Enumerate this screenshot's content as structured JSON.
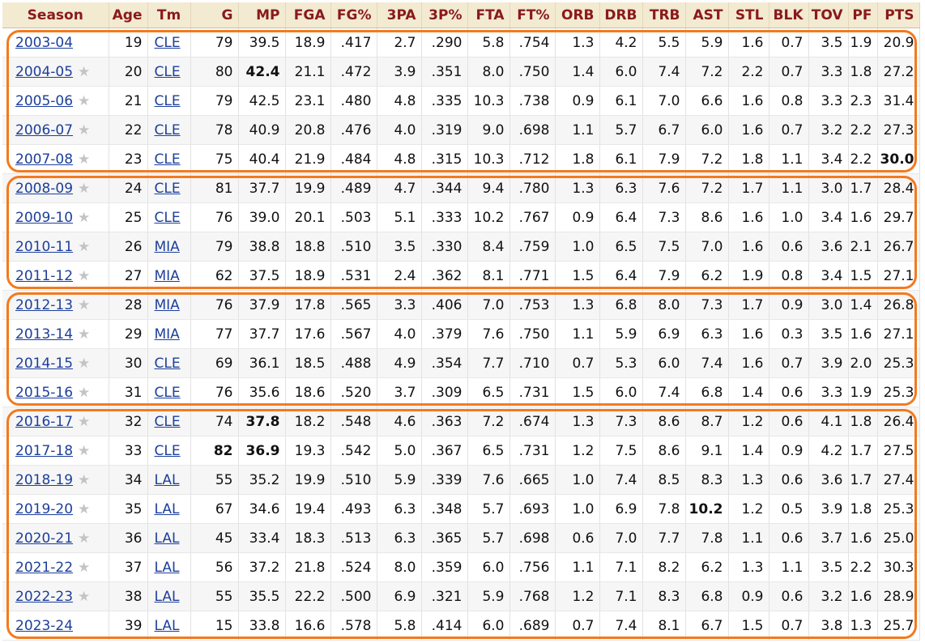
{
  "headers": [
    "Season",
    "Age",
    "Tm",
    "G",
    "MP",
    "FGA",
    "FG%",
    "3PA",
    "3P%",
    "FTA",
    "FT%",
    "ORB",
    "DRB",
    "TRB",
    "AST",
    "STL",
    "BLK",
    "TOV",
    "PF",
    "PTS"
  ],
  "star_glyph": "★",
  "colors": {
    "header_text": "#8a1a1a",
    "header_bg": "#f3ead2",
    "link": "#1c3f9b",
    "highlight_outline": "#f37a1e"
  },
  "rows": [
    {
      "season": "2003-04",
      "star": false,
      "age": "19",
      "tm": "CLE",
      "g": "79",
      "mp": "39.5",
      "fga": "18.9",
      "fgp": ".417",
      "tpa": "2.7",
      "tpp": ".290",
      "fta": "5.8",
      "ftp": ".754",
      "orb": "1.3",
      "drb": "4.2",
      "trb": "5.5",
      "ast": "5.9",
      "stl": "1.6",
      "blk": "0.7",
      "tov": "3.5",
      "pf": "1.9",
      "pts": "20.9",
      "bold": []
    },
    {
      "season": "2004-05",
      "star": true,
      "age": "20",
      "tm": "CLE",
      "g": "80",
      "mp": "42.4",
      "fga": "21.1",
      "fgp": ".472",
      "tpa": "3.9",
      "tpp": ".351",
      "fta": "8.0",
      "ftp": ".750",
      "orb": "1.4",
      "drb": "6.0",
      "trb": "7.4",
      "ast": "7.2",
      "stl": "2.2",
      "blk": "0.7",
      "tov": "3.3",
      "pf": "1.8",
      "pts": "27.2",
      "bold": [
        "mp"
      ]
    },
    {
      "season": "2005-06",
      "star": true,
      "age": "21",
      "tm": "CLE",
      "g": "79",
      "mp": "42.5",
      "fga": "23.1",
      "fgp": ".480",
      "tpa": "4.8",
      "tpp": ".335",
      "fta": "10.3",
      "ftp": ".738",
      "orb": "0.9",
      "drb": "6.1",
      "trb": "7.0",
      "ast": "6.6",
      "stl": "1.6",
      "blk": "0.8",
      "tov": "3.3",
      "pf": "2.3",
      "pts": "31.4",
      "bold": []
    },
    {
      "season": "2006-07",
      "star": true,
      "age": "22",
      "tm": "CLE",
      "g": "78",
      "mp": "40.9",
      "fga": "20.8",
      "fgp": ".476",
      "tpa": "4.0",
      "tpp": ".319",
      "fta": "9.0",
      "ftp": ".698",
      "orb": "1.1",
      "drb": "5.7",
      "trb": "6.7",
      "ast": "6.0",
      "stl": "1.6",
      "blk": "0.7",
      "tov": "3.2",
      "pf": "2.2",
      "pts": "27.3",
      "bold": []
    },
    {
      "season": "2007-08",
      "star": true,
      "age": "23",
      "tm": "CLE",
      "g": "75",
      "mp": "40.4",
      "fga": "21.9",
      "fgp": ".484",
      "tpa": "4.8",
      "tpp": ".315",
      "fta": "10.3",
      "ftp": ".712",
      "orb": "1.8",
      "drb": "6.1",
      "trb": "7.9",
      "ast": "7.2",
      "stl": "1.8",
      "blk": "1.1",
      "tov": "3.4",
      "pf": "2.2",
      "pts": "30.0",
      "bold": [
        "pts"
      ]
    },
    {
      "season": "2008-09",
      "star": true,
      "age": "24",
      "tm": "CLE",
      "g": "81",
      "mp": "37.7",
      "fga": "19.9",
      "fgp": ".489",
      "tpa": "4.7",
      "tpp": ".344",
      "fta": "9.4",
      "ftp": ".780",
      "orb": "1.3",
      "drb": "6.3",
      "trb": "7.6",
      "ast": "7.2",
      "stl": "1.7",
      "blk": "1.1",
      "tov": "3.0",
      "pf": "1.7",
      "pts": "28.4",
      "bold": []
    },
    {
      "season": "2009-10",
      "star": true,
      "age": "25",
      "tm": "CLE",
      "g": "76",
      "mp": "39.0",
      "fga": "20.1",
      "fgp": ".503",
      "tpa": "5.1",
      "tpp": ".333",
      "fta": "10.2",
      "ftp": ".767",
      "orb": "0.9",
      "drb": "6.4",
      "trb": "7.3",
      "ast": "8.6",
      "stl": "1.6",
      "blk": "1.0",
      "tov": "3.4",
      "pf": "1.6",
      "pts": "29.7",
      "bold": []
    },
    {
      "season": "2010-11",
      "star": true,
      "age": "26",
      "tm": "MIA",
      "g": "79",
      "mp": "38.8",
      "fga": "18.8",
      "fgp": ".510",
      "tpa": "3.5",
      "tpp": ".330",
      "fta": "8.4",
      "ftp": ".759",
      "orb": "1.0",
      "drb": "6.5",
      "trb": "7.5",
      "ast": "7.0",
      "stl": "1.6",
      "blk": "0.6",
      "tov": "3.6",
      "pf": "2.1",
      "pts": "26.7",
      "bold": []
    },
    {
      "season": "2011-12",
      "star": true,
      "age": "27",
      "tm": "MIA",
      "g": "62",
      "mp": "37.5",
      "fga": "18.9",
      "fgp": ".531",
      "tpa": "2.4",
      "tpp": ".362",
      "fta": "8.1",
      "ftp": ".771",
      "orb": "1.5",
      "drb": "6.4",
      "trb": "7.9",
      "ast": "6.2",
      "stl": "1.9",
      "blk": "0.8",
      "tov": "3.4",
      "pf": "1.5",
      "pts": "27.1",
      "bold": []
    },
    {
      "season": "2012-13",
      "star": true,
      "age": "28",
      "tm": "MIA",
      "g": "76",
      "mp": "37.9",
      "fga": "17.8",
      "fgp": ".565",
      "tpa": "3.3",
      "tpp": ".406",
      "fta": "7.0",
      "ftp": ".753",
      "orb": "1.3",
      "drb": "6.8",
      "trb": "8.0",
      "ast": "7.3",
      "stl": "1.7",
      "blk": "0.9",
      "tov": "3.0",
      "pf": "1.4",
      "pts": "26.8",
      "bold": []
    },
    {
      "season": "2013-14",
      "star": true,
      "age": "29",
      "tm": "MIA",
      "g": "77",
      "mp": "37.7",
      "fga": "17.6",
      "fgp": ".567",
      "tpa": "4.0",
      "tpp": ".379",
      "fta": "7.6",
      "ftp": ".750",
      "orb": "1.1",
      "drb": "5.9",
      "trb": "6.9",
      "ast": "6.3",
      "stl": "1.6",
      "blk": "0.3",
      "tov": "3.5",
      "pf": "1.6",
      "pts": "27.1",
      "bold": []
    },
    {
      "season": "2014-15",
      "star": true,
      "age": "30",
      "tm": "CLE",
      "g": "69",
      "mp": "36.1",
      "fga": "18.5",
      "fgp": ".488",
      "tpa": "4.9",
      "tpp": ".354",
      "fta": "7.7",
      "ftp": ".710",
      "orb": "0.7",
      "drb": "5.3",
      "trb": "6.0",
      "ast": "7.4",
      "stl": "1.6",
      "blk": "0.7",
      "tov": "3.9",
      "pf": "2.0",
      "pts": "25.3",
      "bold": []
    },
    {
      "season": "2015-16",
      "star": true,
      "age": "31",
      "tm": "CLE",
      "g": "76",
      "mp": "35.6",
      "fga": "18.6",
      "fgp": ".520",
      "tpa": "3.7",
      "tpp": ".309",
      "fta": "6.5",
      "ftp": ".731",
      "orb": "1.5",
      "drb": "6.0",
      "trb": "7.4",
      "ast": "6.8",
      "stl": "1.4",
      "blk": "0.6",
      "tov": "3.3",
      "pf": "1.9",
      "pts": "25.3",
      "bold": []
    },
    {
      "season": "2016-17",
      "star": true,
      "age": "32",
      "tm": "CLE",
      "g": "74",
      "mp": "37.8",
      "fga": "18.2",
      "fgp": ".548",
      "tpa": "4.6",
      "tpp": ".363",
      "fta": "7.2",
      "ftp": ".674",
      "orb": "1.3",
      "drb": "7.3",
      "trb": "8.6",
      "ast": "8.7",
      "stl": "1.2",
      "blk": "0.6",
      "tov": "4.1",
      "pf": "1.8",
      "pts": "26.4",
      "bold": [
        "mp"
      ]
    },
    {
      "season": "2017-18",
      "star": true,
      "age": "33",
      "tm": "CLE",
      "g": "82",
      "mp": "36.9",
      "fga": "19.3",
      "fgp": ".542",
      "tpa": "5.0",
      "tpp": ".367",
      "fta": "6.5",
      "ftp": ".731",
      "orb": "1.2",
      "drb": "7.5",
      "trb": "8.6",
      "ast": "9.1",
      "stl": "1.4",
      "blk": "0.9",
      "tov": "4.2",
      "pf": "1.7",
      "pts": "27.5",
      "bold": [
        "g",
        "mp"
      ]
    },
    {
      "season": "2018-19",
      "star": true,
      "age": "34",
      "tm": "LAL",
      "g": "55",
      "mp": "35.2",
      "fga": "19.9",
      "fgp": ".510",
      "tpa": "5.9",
      "tpp": ".339",
      "fta": "7.6",
      "ftp": ".665",
      "orb": "1.0",
      "drb": "7.4",
      "trb": "8.5",
      "ast": "8.3",
      "stl": "1.3",
      "blk": "0.6",
      "tov": "3.6",
      "pf": "1.7",
      "pts": "27.4",
      "bold": []
    },
    {
      "season": "2019-20",
      "star": true,
      "age": "35",
      "tm": "LAL",
      "g": "67",
      "mp": "34.6",
      "fga": "19.4",
      "fgp": ".493",
      "tpa": "6.3",
      "tpp": ".348",
      "fta": "5.7",
      "ftp": ".693",
      "orb": "1.0",
      "drb": "6.9",
      "trb": "7.8",
      "ast": "10.2",
      "stl": "1.2",
      "blk": "0.5",
      "tov": "3.9",
      "pf": "1.8",
      "pts": "25.3",
      "bold": [
        "ast"
      ]
    },
    {
      "season": "2020-21",
      "star": true,
      "age": "36",
      "tm": "LAL",
      "g": "45",
      "mp": "33.4",
      "fga": "18.3",
      "fgp": ".513",
      "tpa": "6.3",
      "tpp": ".365",
      "fta": "5.7",
      "ftp": ".698",
      "orb": "0.6",
      "drb": "7.0",
      "trb": "7.7",
      "ast": "7.8",
      "stl": "1.1",
      "blk": "0.6",
      "tov": "3.7",
      "pf": "1.6",
      "pts": "25.0",
      "bold": []
    },
    {
      "season": "2021-22",
      "star": true,
      "age": "37",
      "tm": "LAL",
      "g": "56",
      "mp": "37.2",
      "fga": "21.8",
      "fgp": ".524",
      "tpa": "8.0",
      "tpp": ".359",
      "fta": "6.0",
      "ftp": ".756",
      "orb": "1.1",
      "drb": "7.1",
      "trb": "8.2",
      "ast": "6.2",
      "stl": "1.3",
      "blk": "1.1",
      "tov": "3.5",
      "pf": "2.2",
      "pts": "30.3",
      "bold": []
    },
    {
      "season": "2022-23",
      "star": true,
      "age": "38",
      "tm": "LAL",
      "g": "55",
      "mp": "35.5",
      "fga": "22.2",
      "fgp": ".500",
      "tpa": "6.9",
      "tpp": ".321",
      "fta": "5.9",
      "ftp": ".768",
      "orb": "1.2",
      "drb": "7.1",
      "trb": "8.3",
      "ast": "6.8",
      "stl": "0.9",
      "blk": "0.6",
      "tov": "3.2",
      "pf": "1.6",
      "pts": "28.9",
      "bold": []
    },
    {
      "season": "2023-24",
      "star": false,
      "age": "39",
      "tm": "LAL",
      "g": "15",
      "mp": "33.8",
      "fga": "16.6",
      "fgp": ".578",
      "tpa": "5.8",
      "tpp": ".414",
      "fta": "6.0",
      "ftp": ".689",
      "orb": "0.7",
      "drb": "7.4",
      "trb": "8.1",
      "ast": "6.7",
      "stl": "1.5",
      "blk": "0.7",
      "tov": "3.8",
      "pf": "1.3",
      "pts": "25.7",
      "bold": []
    }
  ],
  "highlight_groups": [
    {
      "first_row": 0,
      "last_row": 4
    },
    {
      "first_row": 5,
      "last_row": 8
    },
    {
      "first_row": 9,
      "last_row": 12
    },
    {
      "first_row": 13,
      "last_row": 20
    }
  ]
}
